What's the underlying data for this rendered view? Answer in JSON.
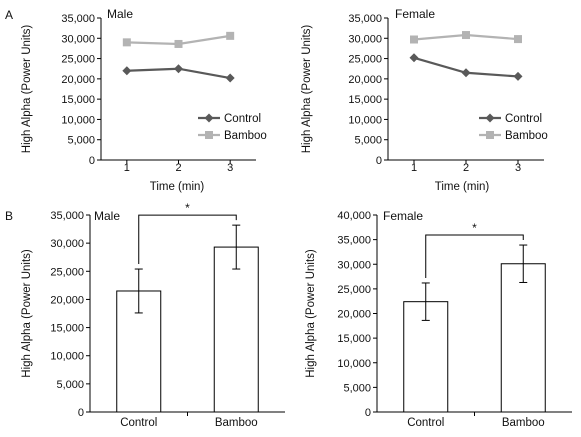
{
  "panels": {
    "A": "A",
    "B": "B"
  },
  "colors": {
    "control": "#595959",
    "bamboo": "#b3b3b3",
    "axis": "#000000",
    "bar_fill": "#ffffff"
  },
  "chart_data": [
    {
      "id": "line-male",
      "type": "line",
      "title": "Male",
      "xlabel": "Time (min)",
      "ylabel": "High Alpha (Power Units)",
      "x": [
        1,
        2,
        3
      ],
      "xlim": [
        0.5,
        3.5
      ],
      "ylim": [
        0,
        35000
      ],
      "yticks": [
        0,
        5000,
        10000,
        15000,
        20000,
        25000,
        30000,
        35000
      ],
      "ytick_labels": [
        "0",
        "5,000",
        "10,000",
        "15,000",
        "20,000",
        "25,000",
        "30,000",
        "35,000"
      ],
      "legend": "bottom-right",
      "series": [
        {
          "name": "Control",
          "marker": "diamond",
          "values": [
            22000,
            22500,
            20200
          ]
        },
        {
          "name": "Bamboo",
          "marker": "square",
          "values": [
            29000,
            28600,
            30600
          ]
        }
      ]
    },
    {
      "id": "line-female",
      "type": "line",
      "title": "Female",
      "xlabel": "Time (min)",
      "ylabel": "High Alpha (Power Units)",
      "x": [
        1,
        2,
        3
      ],
      "xlim": [
        0.5,
        3.5
      ],
      "ylim": [
        0,
        35000
      ],
      "yticks": [
        0,
        5000,
        10000,
        15000,
        20000,
        25000,
        30000,
        35000
      ],
      "ytick_labels": [
        "0",
        "5,000",
        "10,000",
        "15,000",
        "20,000",
        "25,000",
        "30,000",
        "35,000"
      ],
      "legend": "bottom-right",
      "series": [
        {
          "name": "Control",
          "marker": "diamond",
          "values": [
            25200,
            21500,
            20600
          ]
        },
        {
          "name": "Bamboo",
          "marker": "square",
          "values": [
            29700,
            30800,
            29800
          ]
        }
      ]
    },
    {
      "id": "bar-male",
      "type": "bar",
      "title": "Male",
      "ylabel": "High Alpha (Power Units)",
      "categories": [
        "Control",
        "Bamboo"
      ],
      "values": [
        21500,
        29300
      ],
      "errors": [
        3900,
        3900
      ],
      "ylim": [
        0,
        35000
      ],
      "yticks": [
        0,
        5000,
        10000,
        15000,
        20000,
        25000,
        30000,
        35000
      ],
      "ytick_labels": [
        "0",
        "5,000",
        "10,000",
        "15,000",
        "20,000",
        "25,000",
        "30,000",
        "35,000"
      ],
      "significance": "*"
    },
    {
      "id": "bar-female",
      "type": "bar",
      "title": "Female",
      "ylabel": "High Alpha (Power Units)",
      "categories": [
        "Control",
        "Bamboo"
      ],
      "values": [
        22400,
        30100
      ],
      "errors": [
        3800,
        3800
      ],
      "ylim": [
        0,
        40000
      ],
      "yticks": [
        0,
        5000,
        10000,
        15000,
        20000,
        25000,
        30000,
        35000,
        40000
      ],
      "ytick_labels": [
        "0",
        "5,000",
        "10,000",
        "15,000",
        "20,000",
        "25,000",
        "30,000",
        "35,000",
        "40,000"
      ],
      "significance": "*"
    }
  ]
}
